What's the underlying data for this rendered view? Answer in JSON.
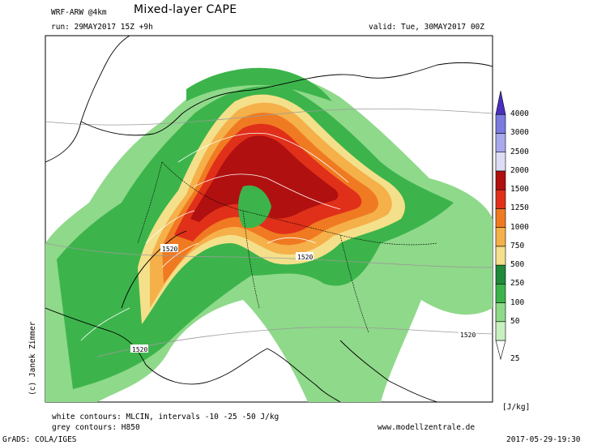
{
  "header": {
    "model": "WRF-ARW @4km",
    "title": "Mixed-layer CAPE",
    "run": "run: 29MAY2017 15Z +9h",
    "valid": "valid: Tue, 30MAY2017 00Z"
  },
  "footer": {
    "white_contours": "white contours: MLCIN, intervals -10 -25 -50 J/kg",
    "grey_contours": "grey contours: H850",
    "website": "www.modellzentrale.de",
    "grads": "GrADS: COLA/IGES",
    "timestamp": "2017-05-29-19:30",
    "author": "(c) Janek Zimmer"
  },
  "contour_labels": [
    "1520",
    "1520",
    "1520",
    "1520"
  ],
  "colorbar": {
    "unit": "[J/kg]",
    "levels": [
      "25",
      "50",
      "100",
      "250",
      "500",
      "750",
      "1000",
      "1250",
      "1500",
      "2000",
      "2500",
      "3000",
      "4000"
    ],
    "colors": [
      "#ffffff",
      "#c8f0c0",
      "#8fd98a",
      "#3cb44b",
      "#1f8a3a",
      "#f4e08a",
      "#f5b04a",
      "#f07a22",
      "#e0301a",
      "#b01010",
      "#dcdcf4",
      "#a8a8ec",
      "#7a7ae0",
      "#4b2fc0"
    ]
  }
}
